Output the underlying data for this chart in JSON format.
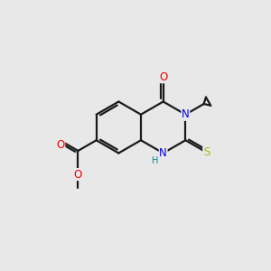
{
  "bg_color": "#e8e8e8",
  "bond_color": "#1a1a1a",
  "N_color": "#0000ee",
  "O_color": "#ee0000",
  "S_color": "#b8b800",
  "H_color": "#008888",
  "bond_lw": 1.6,
  "font_size": 8.5,
  "xlim": [
    0,
    10
  ],
  "ylim": [
    0,
    10
  ]
}
